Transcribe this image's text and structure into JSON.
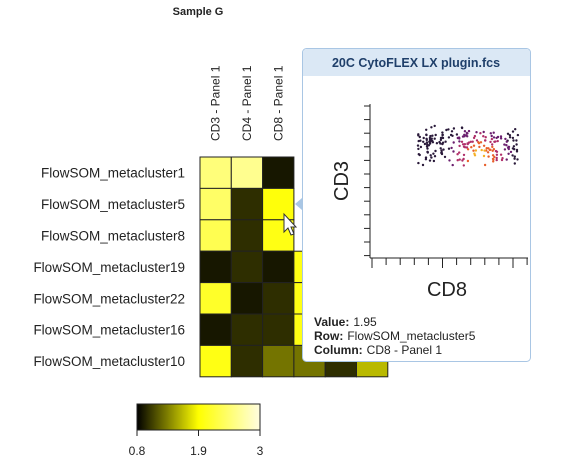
{
  "title": "Sample G",
  "heatmap": {
    "columns": [
      "CD3 - Panel 1",
      "CD4 - Panel 1",
      "CD8 - Panel 1",
      null,
      null,
      null
    ],
    "rows": [
      "FlowSOM_metacluster1",
      "FlowSOM_metacluster5",
      "FlowSOM_metacluster8",
      "FlowSOM_metacluster19",
      "FlowSOM_metacluster22",
      "FlowSOM_metacluster16",
      "FlowSOM_metacluster10"
    ],
    "values": [
      [
        2.5,
        2.6,
        0.9,
        null,
        null,
        null
      ],
      [
        2.4,
        1.0,
        1.95,
        null,
        null,
        null
      ],
      [
        2.3,
        1.0,
        2.0,
        null,
        null,
        null
      ],
      [
        0.9,
        1.0,
        0.9,
        2.0,
        null,
        null
      ],
      [
        2.1,
        0.9,
        1.0,
        2.0,
        null,
        null
      ],
      [
        0.9,
        1.0,
        1.0,
        2.0,
        null,
        null
      ],
      [
        2.0,
        1.0,
        1.3,
        1.3,
        1.0,
        1.6
      ]
    ]
  },
  "colorbar": {
    "colors": [
      "#000000",
      "#ffff00",
      "#fffde0"
    ],
    "ticks": [
      0.8,
      1.9,
      3
    ]
  },
  "tooltip": {
    "title": "20C CytoFLEX LX plugin.fcs",
    "y_axis": "CD3",
    "x_axis": "CD8",
    "value_key": "Value:",
    "value": 1.95,
    "row_key": "Row:",
    "row": "FlowSOM_metacluster5",
    "column_key": "Column:",
    "column": "CD8 - Panel 1"
  }
}
